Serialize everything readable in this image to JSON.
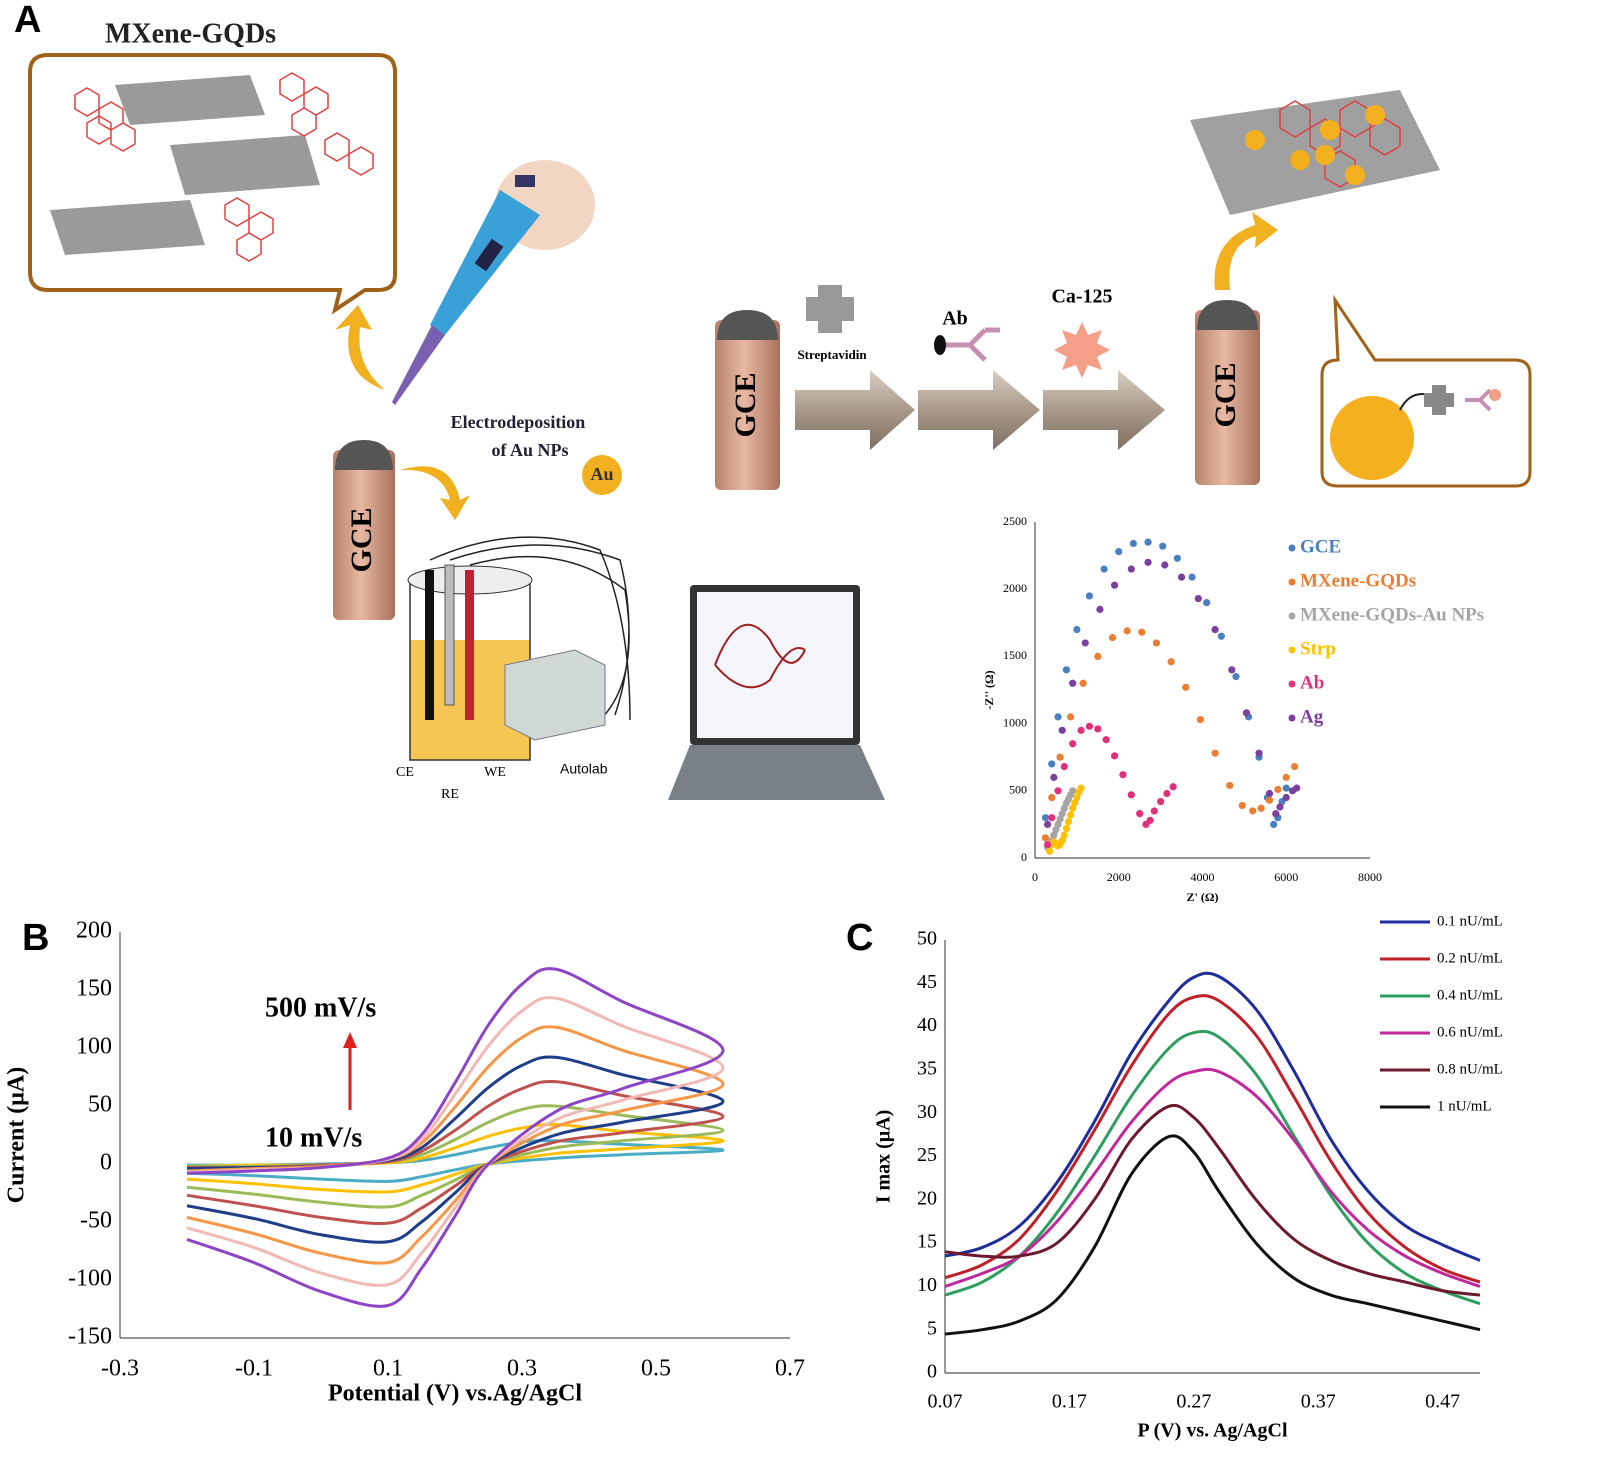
{
  "diagram": {
    "panel_labels": [
      "A",
      "B",
      "C"
    ],
    "mxene_label": "MXene-GQDs",
    "electrodeposition": [
      "Electrodeposition",
      "of Au NPs"
    ],
    "au": "Au",
    "gce": [
      "GCE",
      "GCE",
      "GCE"
    ],
    "streptavidin": "Streptavidin",
    "ab": "Ab",
    "ca125": "Ca-125",
    "cell_labels": [
      "CE",
      "RE",
      "WE"
    ],
    "autolab": "Autolab"
  },
  "chart_data": [
    {
      "type": "scatter",
      "xlabel": "Z' (Ω)",
      "ylabel": "-Z'' (Ω)",
      "xlim": [
        0,
        8000
      ],
      "xticks": [
        0,
        2000,
        4000,
        6000,
        8000
      ],
      "ylim": [
        0,
        2500
      ],
      "yticks": [
        0,
        500,
        1000,
        1500,
        2000,
        2500
      ],
      "legend": "right",
      "series": [
        {
          "name": "GCE",
          "color": "#4a7fc1",
          "x": [
            250,
            400,
            550,
            750,
            1000,
            1300,
            1650,
            2000,
            2350,
            2700,
            3050,
            3400,
            3750,
            4100,
            4450,
            4800,
            5100,
            5350,
            5550,
            5700,
            5800,
            5900,
            6000
          ],
          "values": [
            300,
            700,
            1050,
            1400,
            1700,
            1950,
            2150,
            2280,
            2340,
            2350,
            2320,
            2230,
            2090,
            1900,
            1650,
            1350,
            1050,
            750,
            450,
            250,
            300,
            420,
            520
          ]
        },
        {
          "name": "MXene-GQDs",
          "color": "#ed7d31",
          "x": [
            250,
            400,
            600,
            850,
            1150,
            1500,
            1850,
            2200,
            2550,
            2900,
            3250,
            3600,
            3950,
            4300,
            4650,
            4950,
            5200,
            5400,
            5600,
            5800,
            6000,
            6200
          ],
          "values": [
            150,
            450,
            750,
            1050,
            1300,
            1500,
            1640,
            1690,
            1680,
            1600,
            1460,
            1270,
            1030,
            780,
            540,
            390,
            350,
            370,
            430,
            510,
            600,
            680
          ]
        },
        {
          "name": "MXene-GQDs-Au  NPs",
          "color": "#a5a5a5",
          "x": [
            300,
            350,
            400,
            450,
            500,
            550,
            600,
            650,
            700,
            750,
            800,
            850,
            900
          ],
          "values": [
            80,
            100,
            130,
            170,
            210,
            250,
            290,
            330,
            370,
            410,
            440,
            470,
            500
          ]
        },
        {
          "name": "Strp",
          "color": "#ffc000",
          "x": [
            350,
            400,
            450,
            500,
            550,
            600,
            650,
            700,
            750,
            800,
            850,
            900,
            950,
            1000,
            1050,
            1100
          ],
          "values": [
            50,
            100,
            120,
            110,
            90,
            100,
            130,
            170,
            220,
            270,
            320,
            370,
            410,
            450,
            490,
            520
          ]
        },
        {
          "name": "Ab",
          "color": "#e0307a",
          "x": [
            300,
            400,
            550,
            700,
            900,
            1100,
            1300,
            1500,
            1700,
            1900,
            2100,
            2300,
            2500,
            2650,
            2750,
            2850,
            3000,
            3150,
            3300
          ],
          "values": [
            100,
            300,
            500,
            680,
            850,
            950,
            980,
            960,
            880,
            760,
            620,
            470,
            330,
            250,
            280,
            350,
            420,
            480,
            530
          ]
        },
        {
          "name": "Ag",
          "color": "#7b3fa0",
          "x": [
            300,
            450,
            650,
            900,
            1200,
            1550,
            1900,
            2300,
            2700,
            3100,
            3500,
            3900,
            4300,
            4700,
            5050,
            5350,
            5600,
            5750,
            5850,
            6000,
            6150,
            6250
          ],
          "values": [
            250,
            600,
            950,
            1300,
            1600,
            1850,
            2030,
            2150,
            2200,
            2180,
            2090,
            1930,
            1700,
            1400,
            1080,
            780,
            480,
            330,
            380,
            450,
            500,
            520
          ]
        }
      ]
    },
    {
      "type": "line",
      "xlabel": "Potential (V) vs.Ag/AgCl",
      "ylabel": "Current (μA)",
      "xlim": [
        -0.3,
        0.7
      ],
      "xticks": [
        -0.3,
        -0.1,
        0.1,
        0.3,
        0.5,
        0.7
      ],
      "ylim": [
        -150,
        200
      ],
      "yticks": [
        -150,
        -100,
        -50,
        0,
        50,
        100,
        150,
        200
      ],
      "annotations": [
        "500 mV/s",
        "10 mV/s"
      ],
      "x": [
        -0.2,
        -0.1,
        0,
        0.1,
        0.15,
        0.2,
        0.25,
        0.3,
        0.35,
        0.45,
        0.6,
        0.45,
        0.35,
        0.25,
        0.2,
        0.15,
        0.1,
        0,
        -0.1,
        -0.2
      ],
      "series": [
        {
          "color": "#4bacc6",
          "values": [
            -1,
            -1,
            0,
            1,
            3,
            8,
            14,
            19,
            20,
            17,
            12,
            8,
            5,
            0,
            -5,
            -11,
            -15,
            -13,
            -10,
            -8
          ]
        },
        {
          "color": "#ffc000",
          "values": [
            -2,
            -1,
            -1,
            1,
            5,
            14,
            24,
            31,
            34,
            28,
            20,
            13,
            9,
            0,
            -9,
            -18,
            -24,
            -22,
            -17,
            -13
          ]
        },
        {
          "color": "#9bbb59",
          "values": [
            -2,
            -2,
            -1,
            2,
            8,
            21,
            36,
            47,
            50,
            42,
            29,
            20,
            14,
            0,
            -14,
            -27,
            -37,
            -33,
            -26,
            -20
          ]
        },
        {
          "color": "#c0504d",
          "values": [
            -3,
            -3,
            -1,
            2,
            11,
            29,
            50,
            65,
            71,
            59,
            41,
            27,
            19,
            0,
            -19,
            -38,
            -51,
            -46,
            -36,
            -27
          ]
        },
        {
          "color": "#1f3e8a",
          "values": [
            -4,
            -3,
            -2,
            3,
            14,
            39,
            66,
            85,
            92,
            77,
            54,
            36,
            25,
            0,
            -25,
            -50,
            -67,
            -61,
            -47,
            -36
          ]
        },
        {
          "color": "#f79646",
          "values": [
            -6,
            -4,
            -2,
            4,
            18,
            49,
            84,
            109,
            118,
            98,
            69,
            46,
            32,
            0,
            -32,
            -63,
            -85,
            -77,
            -60,
            -46
          ]
        },
        {
          "color": "#f2b8b5",
          "values": [
            -7,
            -5,
            -3,
            4,
            21,
            60,
            102,
            132,
            143,
            119,
            83,
            55,
            38,
            0,
            -38,
            -77,
            -104,
            -94,
            -72,
            -55
          ]
        },
        {
          "color": "#8e44c6",
          "values": [
            -8,
            -6,
            -3,
            5,
            25,
            70,
            120,
            155,
            168,
            140,
            98,
            65,
            45,
            0,
            -45,
            -90,
            -122,
            -110,
            -85,
            -65
          ]
        }
      ]
    },
    {
      "type": "line",
      "xlabel": "P (V) vs. Ag/AgCl",
      "ylabel": "I max (μA)",
      "xlim": [
        0.07,
        0.5
      ],
      "xticks": [
        0.07,
        0.17,
        0.27,
        0.37,
        0.47
      ],
      "ylim": [
        0,
        50
      ],
      "yticks": [
        0,
        5,
        10,
        15,
        20,
        25,
        30,
        35,
        40,
        45,
        50
      ],
      "legend": "top right",
      "x": [
        0.07,
        0.1,
        0.13,
        0.16,
        0.19,
        0.22,
        0.25,
        0.27,
        0.29,
        0.32,
        0.35,
        0.38,
        0.41,
        0.44,
        0.47,
        0.5
      ],
      "series": [
        {
          "name": "0.1 nU/mL",
          "color": "#1f2d9c",
          "values": [
            13.5,
            14.5,
            17,
            22,
            29,
            37,
            43,
            45.7,
            45.8,
            42,
            35,
            27,
            21,
            17,
            14.8,
            13
          ]
        },
        {
          "name": "0.2 nU/mL",
          "color": "#c0202a",
          "values": [
            11,
            12.5,
            15.5,
            21,
            28,
            35.5,
            41.5,
            43.4,
            43,
            39,
            32,
            24.5,
            18.5,
            14.5,
            12,
            10.5
          ]
        },
        {
          "name": "0.4 nU/mL",
          "color": "#2e9e5e",
          "values": [
            9,
            10.5,
            13.5,
            18.5,
            25,
            32,
            37.5,
            39.3,
            38.8,
            34.5,
            27.5,
            20.5,
            15,
            11.5,
            9.5,
            8
          ]
        },
        {
          "name": "0.6 nU/mL",
          "color": "#c0289c",
          "values": [
            10,
            11.5,
            13.5,
            17.5,
            23,
            29,
            33.5,
            34.8,
            34.8,
            32,
            27,
            21,
            16.5,
            13.5,
            11.5,
            10
          ]
        },
        {
          "name": "0.8 nU/mL",
          "color": "#6e1a2e",
          "values": [
            14,
            13.5,
            13.5,
            15,
            20,
            27,
            30.8,
            29.5,
            26,
            20,
            15.5,
            13,
            11.5,
            10.5,
            9.5,
            9
          ]
        },
        {
          "name": "1 nU/mL",
          "color": "#111111",
          "values": [
            4.5,
            5,
            6,
            8.5,
            14.5,
            23,
            27.3,
            25.5,
            21,
            15,
            11,
            9,
            8,
            7,
            6,
            5
          ]
        }
      ]
    }
  ]
}
